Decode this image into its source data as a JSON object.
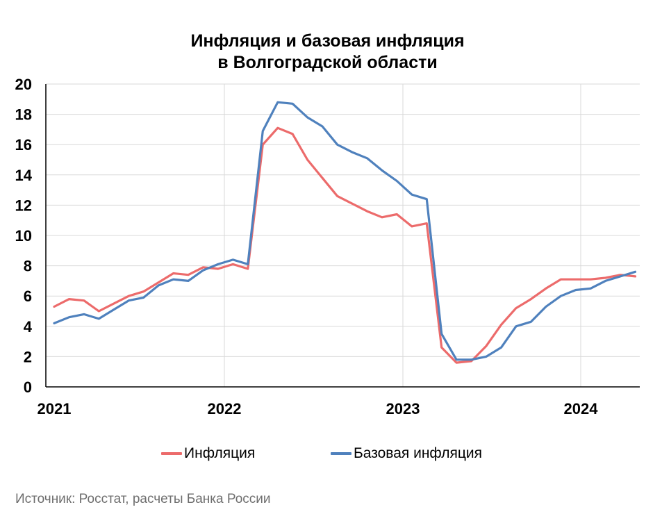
{
  "chart_data": {
    "type": "line",
    "title_line1": "Инфляция и базовая инфляция",
    "title_line2": "в Волгоградской области",
    "xlabel": "",
    "ylabel": "",
    "ylim": [
      0,
      20
    ],
    "y_ticks": [
      "0",
      "2",
      "4",
      "6",
      "8",
      "10",
      "12",
      "14",
      "16",
      "18",
      "20"
    ],
    "x_tick_labels": [
      "2021",
      "2022",
      "2023",
      "2024"
    ],
    "grid": true,
    "legend_position": "bottom",
    "x_start": "2021-01",
    "x_end": "2024-04",
    "series": [
      {
        "name": "Инфляция",
        "color": "#ec6b6b",
        "values": [
          5.3,
          5.8,
          5.7,
          5.0,
          5.5,
          6.0,
          6.3,
          6.9,
          7.5,
          7.4,
          7.9,
          7.8,
          8.1,
          7.8,
          16.0,
          17.1,
          16.7,
          15.0,
          13.8,
          12.6,
          12.1,
          11.6,
          11.2,
          11.4,
          10.6,
          10.8,
          2.6,
          1.6,
          1.7,
          2.7,
          4.1,
          5.2,
          5.8,
          6.5,
          7.1,
          7.1,
          7.1,
          7.2,
          7.4,
          7.3
        ]
      },
      {
        "name": "Базовая инфляция",
        "color": "#4f81bd",
        "values": [
          4.2,
          4.6,
          4.8,
          4.5,
          5.1,
          5.7,
          5.9,
          6.7,
          7.1,
          7.0,
          7.7,
          8.1,
          8.4,
          8.1,
          16.9,
          18.8,
          18.7,
          17.8,
          17.2,
          16.0,
          15.5,
          15.1,
          14.3,
          13.6,
          12.7,
          12.4,
          3.5,
          1.8,
          1.8,
          2.0,
          2.6,
          4.0,
          4.3,
          5.3,
          6.0,
          6.4,
          6.5,
          7.0,
          7.3,
          7.6
        ]
      }
    ]
  },
  "footer": {
    "source": "Источник: Росстат, расчеты Банка России"
  }
}
